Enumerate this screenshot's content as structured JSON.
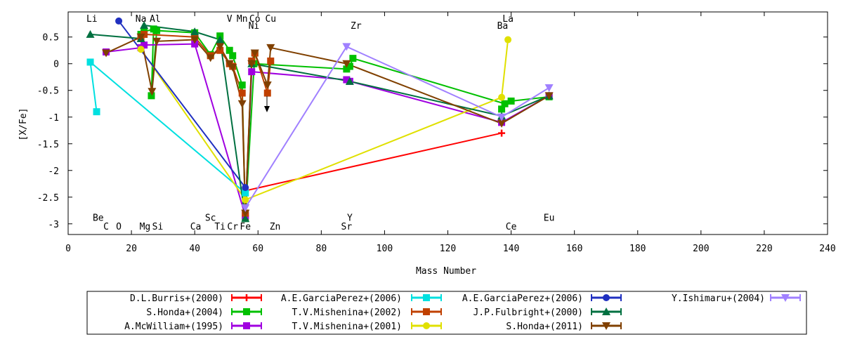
{
  "chart_data": {
    "type": "line",
    "xlabel": "Mass Number",
    "ylabel": "[X/Fe]",
    "xlim": [
      0,
      240
    ],
    "ylim": [
      -3.2,
      0.97
    ],
    "xticks": [
      "0",
      "20",
      "40",
      "60",
      "80",
      "100",
      "120",
      "140",
      "160",
      "180",
      "200",
      "220",
      "240"
    ],
    "yticks": [
      "0.5",
      "0",
      "-0.5",
      "-1",
      "-1.5",
      "-2",
      "-2.5",
      "-3"
    ],
    "grid": false,
    "legend_position": "bottom",
    "element_labels": [
      {
        "text": "Li",
        "x": 7.5,
        "y": 0.85
      },
      {
        "text": "Na",
        "x": 23,
        "y": 0.85
      },
      {
        "text": "Al",
        "x": 27.5,
        "y": 0.85
      },
      {
        "text": "V",
        "x": 51,
        "y": 0.85
      },
      {
        "text": "Mn",
        "x": 55,
        "y": 0.85
      },
      {
        "text": "Co",
        "x": 59,
        "y": 0.85
      },
      {
        "text": "Cu",
        "x": 64,
        "y": 0.85
      },
      {
        "text": "Ni",
        "x": 58.7,
        "y": 0.72
      },
      {
        "text": "Zr",
        "x": 91,
        "y": 0.72
      },
      {
        "text": "La",
        "x": 139,
        "y": 0.85
      },
      {
        "text": "Ba",
        "x": 137.3,
        "y": 0.72
      },
      {
        "text": "Be",
        "x": 9.5,
        "y": -2.88
      },
      {
        "text": "C",
        "x": 12,
        "y": -3.04
      },
      {
        "text": "O",
        "x": 16,
        "y": -3.04
      },
      {
        "text": "Mg",
        "x": 24.3,
        "y": -3.04
      },
      {
        "text": "Si",
        "x": 28.3,
        "y": -3.04
      },
      {
        "text": "Ca",
        "x": 40.3,
        "y": -3.04
      },
      {
        "text": "Sc",
        "x": 45,
        "y": -2.88
      },
      {
        "text": "Ti",
        "x": 48,
        "y": -3.04
      },
      {
        "text": "Cr",
        "x": 52,
        "y": -3.04
      },
      {
        "text": "Fe",
        "x": 56,
        "y": -3.04
      },
      {
        "text": "Zn",
        "x": 65.4,
        "y": -3.04
      },
      {
        "text": "Y",
        "x": 89,
        "y": -2.88
      },
      {
        "text": "Sr",
        "x": 88,
        "y": -3.04
      },
      {
        "text": "Ce",
        "x": 140,
        "y": -3.04
      },
      {
        "text": "Eu",
        "x": 152,
        "y": -2.88
      }
    ],
    "series": [
      {
        "name": "D.L.Burris+(2000)",
        "color": "#ff0000",
        "marker": "plus",
        "points": [
          [
            56,
            -2.38
          ],
          [
            137,
            -1.3
          ]
        ]
      },
      {
        "name": "S.Honda+(2004)",
        "color": "#00c000",
        "marker": "square",
        "points": [
          [
            23,
            0.55
          ],
          [
            24,
            0.6
          ],
          [
            27,
            0.65
          ],
          [
            26.3,
            -0.6
          ],
          [
            28,
            0.62
          ],
          [
            40,
            0.58
          ],
          [
            45,
            0.17
          ],
          [
            48,
            0.52
          ],
          [
            51,
            0.25
          ],
          [
            52,
            0.15
          ],
          [
            55,
            -0.4
          ],
          [
            56,
            -2.9
          ],
          [
            59,
            0.2
          ],
          [
            58.7,
            0.0
          ],
          [
            88,
            -0.1
          ],
          [
            89,
            -0.05
          ],
          [
            90,
            0.1
          ],
          [
            138,
            -0.75
          ],
          [
            137,
            -0.85
          ],
          [
            140,
            -0.7
          ],
          [
            152,
            -0.62
          ]
        ]
      },
      {
        "name": "A.McWilliam+(1995)",
        "color": "#a000e0",
        "marker": "square",
        "points": [
          [
            12,
            0.22
          ],
          [
            23,
            0.3
          ],
          [
            24,
            0.35
          ],
          [
            40,
            0.37
          ],
          [
            56,
            -2.85
          ],
          [
            58,
            -0.15
          ],
          [
            88,
            -0.3
          ],
          [
            89,
            -0.33
          ],
          [
            137,
            -1.1
          ],
          [
            152,
            -0.6
          ]
        ]
      },
      {
        "name": "A.E.GarciaPerez+(2006)",
        "color": "#00e0e0",
        "marker": "square",
        "points": [
          [
            9,
            -0.9
          ],
          [
            7,
            0.03
          ],
          [
            56,
            -2.42
          ]
        ]
      },
      {
        "name": "T.V.Mishenina+(2002)",
        "color": "#c04000",
        "marker": "square",
        "points": [
          [
            23,
            0.5
          ],
          [
            24,
            0.55
          ],
          [
            40,
            0.5
          ],
          [
            45,
            0.15
          ],
          [
            48,
            0.25
          ],
          [
            51,
            0.0
          ],
          [
            52,
            -0.05
          ],
          [
            55,
            -0.55
          ],
          [
            56,
            -2.8
          ],
          [
            58,
            0.05
          ],
          [
            59,
            0.2
          ],
          [
            63,
            -0.55
          ],
          [
            64,
            0.05
          ]
        ]
      },
      {
        "name": "T.V.Mishenina+(2001)",
        "color": "#e0e000",
        "marker": "circle",
        "points": [
          [
            23,
            0.27
          ],
          [
            56,
            -2.55
          ],
          [
            137,
            -0.63
          ],
          [
            139,
            0.45
          ]
        ]
      },
      {
        "name": "A.E.GarciaPerez+(2006)",
        "color": "#2030c0",
        "marker": "circle",
        "points": [
          [
            16,
            0.8
          ],
          [
            56,
            -2.32
          ]
        ]
      },
      {
        "name": "J.P.Fulbright+(2000)",
        "color": "#007040",
        "marker": "triangle",
        "points": [
          [
            7,
            0.55
          ],
          [
            23,
            0.47
          ],
          [
            24,
            0.72
          ],
          [
            40,
            0.6
          ],
          [
            48,
            0.45
          ],
          [
            56,
            -2.9
          ],
          [
            58,
            0.0
          ],
          [
            89,
            -0.33
          ],
          [
            137,
            -0.98
          ],
          [
            152,
            -0.6
          ]
        ]
      },
      {
        "name": "S.Honda+(2011)",
        "color": "#804000",
        "marker": "triangle-down",
        "points": [
          [
            12,
            0.2
          ],
          [
            23,
            0.5
          ],
          [
            26.5,
            -0.52
          ],
          [
            28,
            0.42
          ],
          [
            40,
            0.45
          ],
          [
            45,
            0.11
          ],
          [
            48,
            0.32
          ],
          [
            51,
            0.0
          ],
          [
            52,
            -0.07
          ],
          [
            55,
            -0.75
          ],
          [
            56,
            -2.8
          ],
          [
            58,
            0.0
          ],
          [
            59,
            0.2
          ],
          [
            63,
            -0.4
          ],
          [
            64,
            0.3
          ],
          [
            88,
            0.0
          ],
          [
            137,
            -1.12
          ],
          [
            152,
            -0.6
          ]
        ]
      },
      {
        "name": "Y.Ishimaru+(2004)",
        "color": "#a080ff",
        "marker": "triangle-down",
        "points": [
          [
            56,
            -2.7
          ],
          [
            88,
            0.32
          ],
          [
            137,
            -1.0
          ],
          [
            152,
            -0.45
          ]
        ]
      }
    ]
  }
}
